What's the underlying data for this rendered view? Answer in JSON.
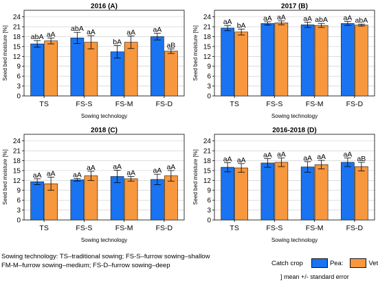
{
  "chart_data": [
    {
      "type": "bar",
      "title": "2016 (A)",
      "xlabel": "Sowing technology",
      "ylabel": "Seed bed moisture [%]",
      "ylim": [
        0,
        26
      ],
      "yticks": [
        0,
        3,
        6,
        9,
        12,
        15,
        18,
        21,
        24
      ],
      "grid": true,
      "categories": [
        "TS",
        "FS-S",
        "FS-M",
        "FS-D"
      ],
      "series": [
        {
          "name": "Pea",
          "color": "#1a73f0",
          "values": [
            15.8,
            17.6,
            13.4,
            18.0
          ],
          "errors": [
            1.0,
            1.7,
            1.9,
            1.0
          ],
          "labels": [
            "abA",
            "abA",
            "bA",
            "aA"
          ]
        },
        {
          "name": "Vetch",
          "color": "#f7973e",
          "values": [
            16.7,
            16.3,
            16.3,
            13.6
          ],
          "errors": [
            0.9,
            2.0,
            1.9,
            0.7
          ],
          "labels": [
            "aA",
            "aA",
            "aA",
            "aB"
          ]
        }
      ]
    },
    {
      "type": "bar",
      "title": "2017 (B)",
      "xlabel": "Sowing technology",
      "ylabel": "Seed bed moisture [%]",
      "ylim": [
        0,
        26
      ],
      "yticks": [
        0,
        3,
        6,
        9,
        12,
        15,
        18,
        21,
        24
      ],
      "grid": true,
      "categories": [
        "TS",
        "FS-S",
        "FS-M",
        "FS-D"
      ],
      "series": [
        {
          "name": "Pea",
          "color": "#1a73f0",
          "values": [
            20.6,
            22.0,
            21.6,
            22.0
          ],
          "errors": [
            0.8,
            0.5,
            0.8,
            0.6
          ],
          "labels": [
            "aA",
            "aA",
            "aA",
            "aA"
          ]
        },
        {
          "name": "Vetch",
          "color": "#f7973e",
          "values": [
            19.4,
            22.2,
            21.4,
            21.5
          ],
          "errors": [
            0.9,
            0.6,
            0.6,
            0.3
          ],
          "labels": [
            "bA",
            "aA",
            "abA",
            "abA"
          ]
        }
      ]
    },
    {
      "type": "bar",
      "title": "2018 (C)",
      "xlabel": "Sowing technology",
      "ylabel": "Seed bed moisture [%]",
      "ylim": [
        0,
        26
      ],
      "yticks": [
        0,
        3,
        6,
        9,
        12,
        15,
        18,
        21,
        24
      ],
      "grid": true,
      "categories": [
        "TS",
        "FS-S",
        "FS-M",
        "FS-D"
      ],
      "series": [
        {
          "name": "Pea",
          "color": "#1a73f0",
          "values": [
            11.6,
            12.2,
            13.2,
            12.3
          ],
          "errors": [
            0.9,
            0.4,
            1.9,
            1.6
          ],
          "labels": [
            "aA",
            "aA",
            "aA",
            "aA"
          ]
        },
        {
          "name": "Vetch",
          "color": "#f7973e",
          "values": [
            11.0,
            13.4,
            12.5,
            13.4
          ],
          "errors": [
            2.0,
            1.4,
            0.7,
            1.6
          ],
          "labels": [
            "aA",
            "aA",
            "aA",
            "aA"
          ]
        }
      ]
    },
    {
      "type": "bar",
      "title": "2016-2018 (D)",
      "xlabel": "Sowing technology",
      "ylabel": "Seed bed moisture [%]",
      "ylim": [
        0,
        26
      ],
      "yticks": [
        0,
        3,
        6,
        9,
        12,
        15,
        18,
        21,
        24
      ],
      "grid": true,
      "categories": [
        "TS",
        "FS-S",
        "FS-M",
        "FS-D"
      ],
      "series": [
        {
          "name": "Pea",
          "color": "#1a73f0",
          "values": [
            16.0,
            17.3,
            16.1,
            17.5
          ],
          "errors": [
            1.4,
            1.3,
            1.6,
            1.3
          ],
          "labels": [
            "aA",
            "aA",
            "aA",
            "aA"
          ]
        },
        {
          "name": "Vetch",
          "color": "#f7973e",
          "values": [
            15.8,
            17.5,
            16.8,
            16.2
          ],
          "errors": [
            1.3,
            1.3,
            1.3,
            1.3
          ],
          "labels": [
            "aA",
            "aA",
            "aA",
            "aB"
          ]
        }
      ]
    }
  ],
  "footer": {
    "line1": "Sowing technology: TS–traditional sowing; FS-S–furrow sowing–shallow",
    "line2": "FM-M–furrow sowing–medium; FS-D–furrow sowing–deep"
  },
  "legend": {
    "title": "Catch crop",
    "items": [
      {
        "label": "Pea:",
        "color": "#1a73f0"
      },
      {
        "label": "Vetch",
        "color": "#f7973e"
      }
    ],
    "error_note": "] mean +/- standard error"
  }
}
